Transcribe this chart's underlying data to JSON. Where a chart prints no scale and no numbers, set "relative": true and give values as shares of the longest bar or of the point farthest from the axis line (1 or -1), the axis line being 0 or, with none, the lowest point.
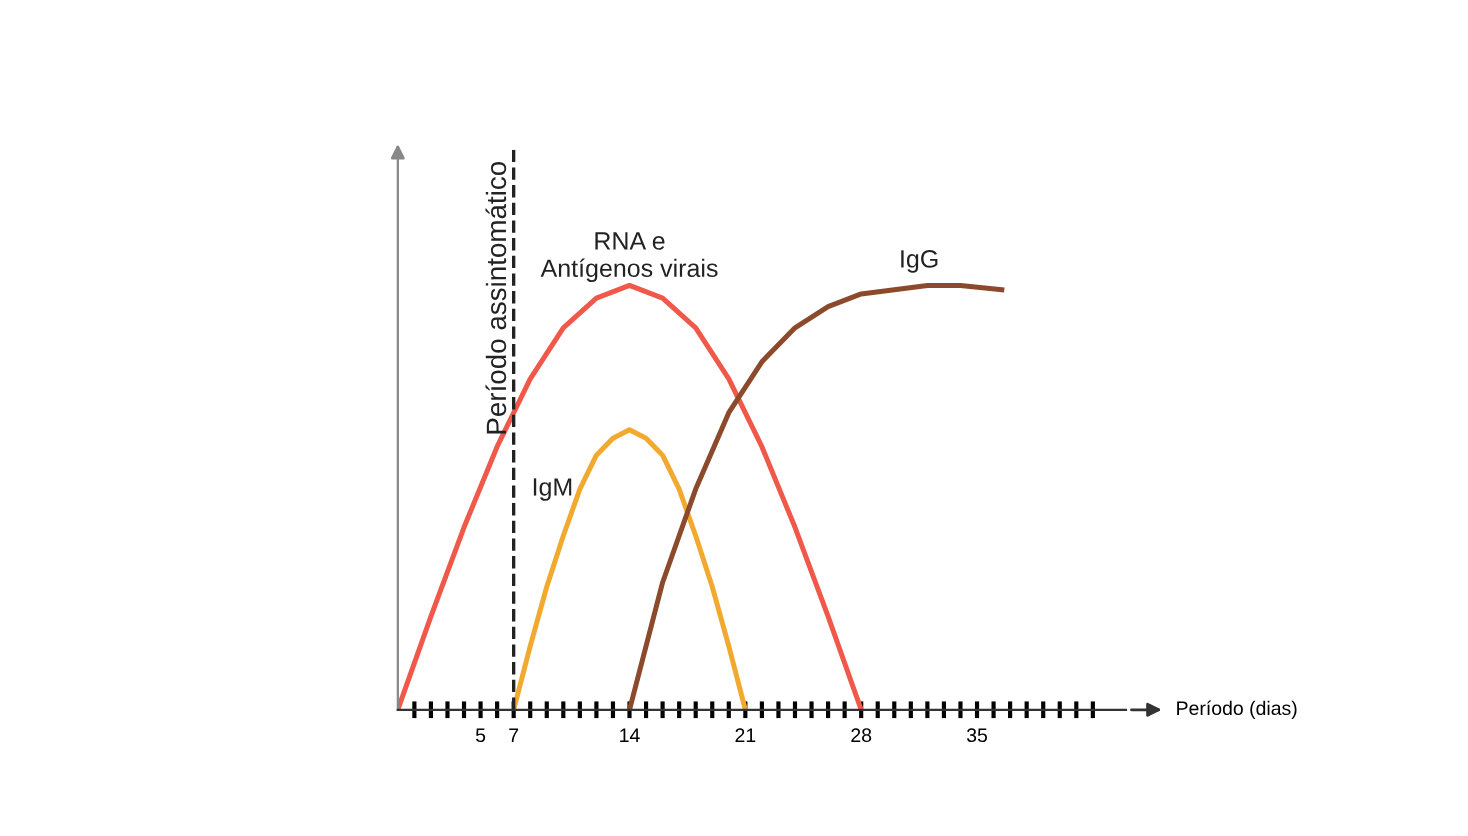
{
  "chart_data": {
    "type": "line",
    "relative": true,
    "xlabel": "Período (dias)",
    "xlim": [
      0,
      44
    ],
    "xticks": [
      {
        "value": 1,
        "label": null
      },
      {
        "value": 2,
        "label": null
      },
      {
        "value": 3,
        "label": null
      },
      {
        "value": 4,
        "label": null
      },
      5,
      {
        "value": 6,
        "label": null
      },
      7,
      {
        "value": 8,
        "label": null
      },
      {
        "value": 9,
        "label": null
      },
      {
        "value": 10,
        "label": null
      },
      {
        "value": 11,
        "label": null
      },
      {
        "value": 12,
        "label": null
      },
      {
        "value": 13,
        "label": null
      },
      14,
      {
        "value": 15,
        "label": null
      },
      {
        "value": 16,
        "label": null
      },
      {
        "value": 17,
        "label": null
      },
      {
        "value": 18,
        "label": null
      },
      {
        "value": 19,
        "label": null
      },
      {
        "value": 20,
        "label": null
      },
      21,
      {
        "value": 22,
        "label": null
      },
      {
        "value": 23,
        "label": null
      },
      {
        "value": 24,
        "label": null
      },
      {
        "value": 25,
        "label": null
      },
      {
        "value": 26,
        "label": null
      },
      {
        "value": 27,
        "label": null
      },
      28,
      {
        "value": 29,
        "label": null
      },
      {
        "value": 30,
        "label": null
      },
      {
        "value": 31,
        "label": null
      },
      {
        "value": 32,
        "label": null
      },
      {
        "value": 33,
        "label": null
      },
      {
        "value": 34,
        "label": null
      },
      35,
      {
        "value": 36,
        "label": null
      },
      {
        "value": 37,
        "label": null
      },
      {
        "value": 38,
        "label": null
      },
      {
        "value": 39,
        "label": null
      },
      {
        "value": 40,
        "label": null
      },
      {
        "value": 41,
        "label": null
      },
      {
        "value": 42,
        "label": null
      }
    ],
    "marker": "none",
    "line_style": "solid",
    "grid": false,
    "legend": false,
    "series": [
      {
        "name": "RNA e\nAntígenos virais",
        "color": "#f0584a",
        "x": [
          0,
          2,
          4,
          6,
          8,
          10,
          12,
          14,
          16,
          18,
          20,
          22,
          24,
          26,
          28
        ],
        "values": [
          0,
          0.22,
          0.43,
          0.62,
          0.78,
          0.9,
          0.97,
          1,
          0.97,
          0.9,
          0.78,
          0.62,
          0.43,
          0.22,
          0
        ]
      },
      {
        "name": "IgM",
        "color": "#f2a930",
        "x": [
          7,
          8,
          9,
          10,
          11,
          12,
          13,
          14,
          15,
          16,
          17,
          18,
          19,
          20,
          21
        ],
        "values": [
          0,
          0.15,
          0.29,
          0.41,
          0.52,
          0.6,
          0.64,
          0.66,
          0.64,
          0.6,
          0.52,
          0.41,
          0.29,
          0.15,
          0
        ]
      },
      {
        "name": "IgG",
        "color": "#8b4a2b",
        "x": [
          14,
          16,
          18,
          20,
          22,
          24,
          26,
          28,
          30,
          32,
          34,
          36.5
        ],
        "values": [
          0,
          0.3,
          0.52,
          0.7,
          0.82,
          0.9,
          0.95,
          0.98,
          0.99,
          1,
          1,
          0.99
        ]
      }
    ],
    "ref_lines": [
      {
        "axis": "x",
        "value": 7,
        "label": "Período assintomático",
        "color": "#222222",
        "line_style": "dashed"
      }
    ]
  }
}
